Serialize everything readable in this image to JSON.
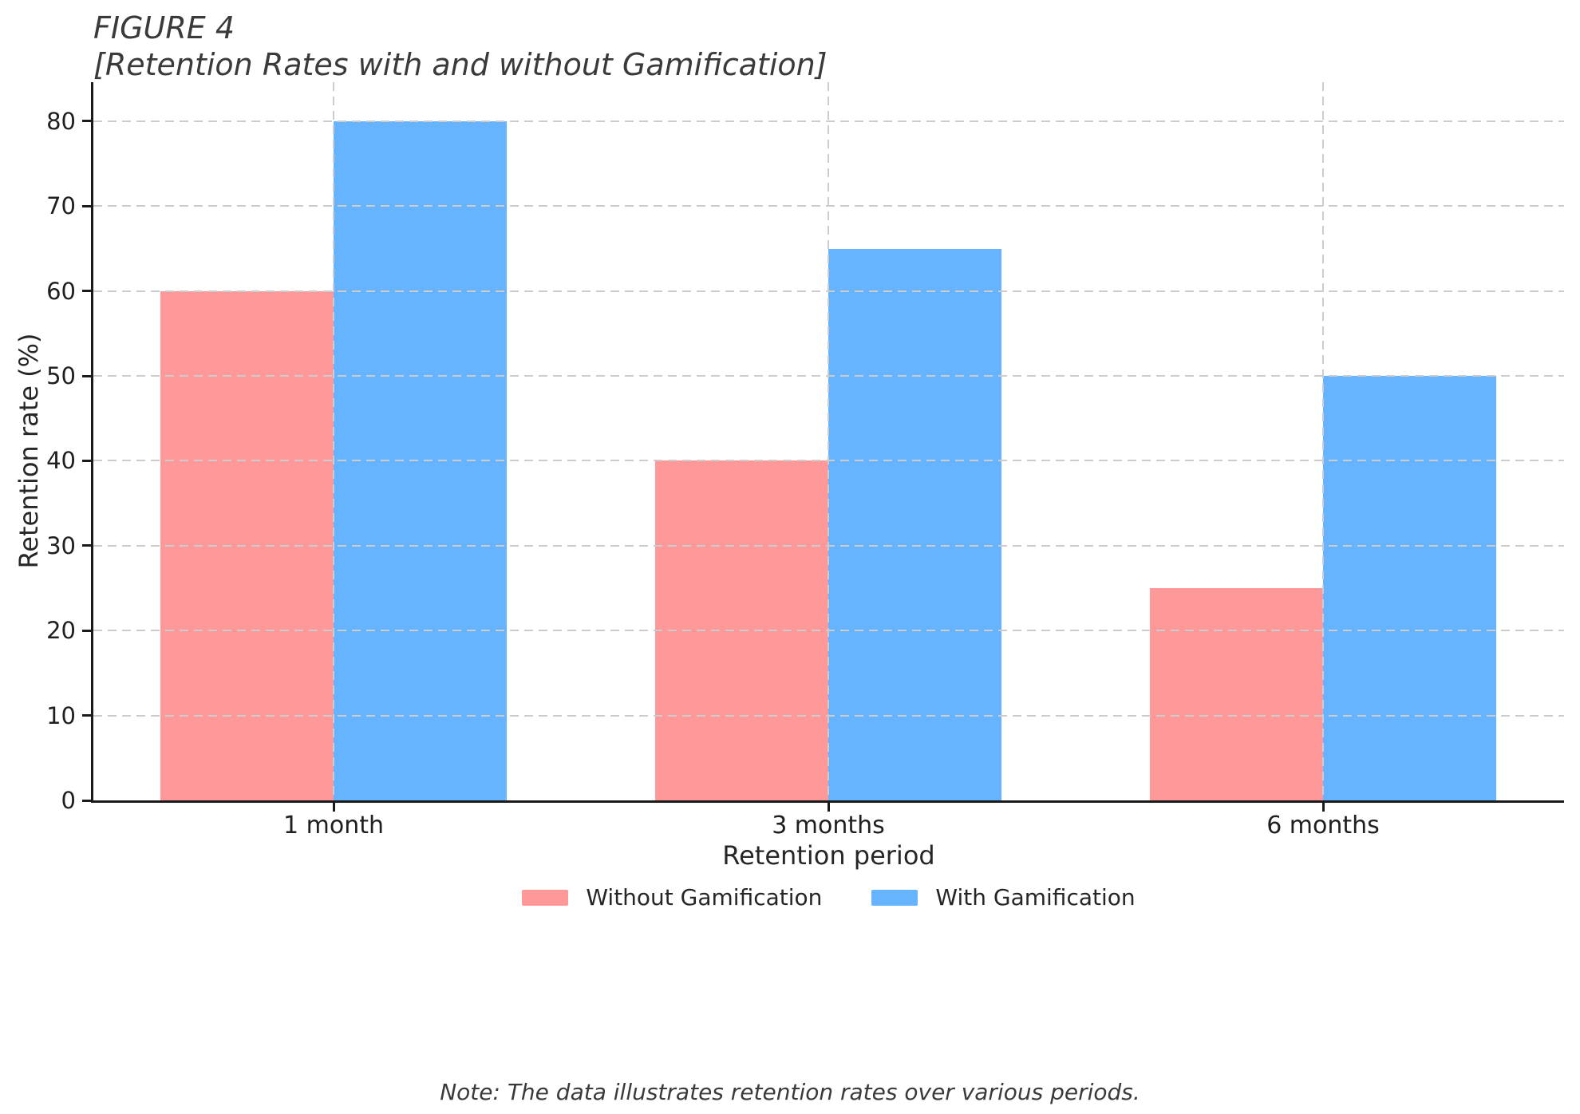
{
  "figure": {
    "title_line1": "FIGURE 4",
    "title_line2": "[Retention Rates with and without Gamification]",
    "note": "Note: The data illustrates retention rates over various periods."
  },
  "chart_data": {
    "type": "bar",
    "title": "FIGURE 4 [Retention Rates with and without Gamification]",
    "categories": [
      "1 month",
      "3 months",
      "6 months"
    ],
    "series": [
      {
        "name": "Without Gamification",
        "values": [
          60,
          40,
          25
        ],
        "color": "#FF9999"
      },
      {
        "name": "With Gamification",
        "values": [
          80,
          65,
          50
        ],
        "color": "#66B3FF"
      }
    ],
    "xlabel": "Retention period",
    "ylabel": "Retention rate (%)",
    "ylim": [
      0,
      84.6
    ],
    "yticks": [
      0,
      10,
      20,
      30,
      40,
      50,
      60,
      70,
      80
    ],
    "grid": "dashed horizontal and vertical gridlines drawn over bars",
    "legend_position": "bottom center",
    "note": "Note: The data illustrates retention rates over various periods."
  },
  "colors": {
    "bar_without": "#FF9999",
    "bar_with": "#66B3FF",
    "grid": "#cccccc",
    "axis": "#1a1a1a",
    "tick_text": "#1f1f1f",
    "label_text": "#262626",
    "title_text": "#3a3a3a"
  }
}
